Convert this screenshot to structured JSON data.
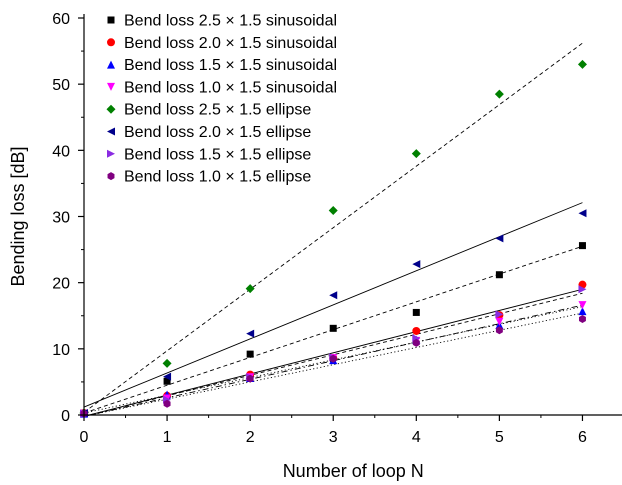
{
  "chart_data": {
    "type": "scatter",
    "title": "",
    "xlabel": "Number of loop N",
    "ylabel": "Bending loss [dB]",
    "xlim": [
      0,
      6.5
    ],
    "ylim": [
      0,
      60
    ],
    "x_ticks": [
      0,
      1,
      2,
      3,
      4,
      5,
      6
    ],
    "y_ticks": [
      0,
      10,
      20,
      30,
      40,
      50,
      60
    ],
    "grid": false,
    "legend_position": "top-left",
    "series": [
      {
        "name": "Bend loss 2.5 × 1.5 sinusoidal",
        "marker": "square",
        "color": "#000000",
        "x": [
          0,
          1,
          2,
          3,
          4,
          5,
          6
        ],
        "y": [
          0.3,
          5.1,
          9.2,
          13.1,
          15.5,
          21.2,
          25.6
        ],
        "fit": {
          "intercept": 0.3,
          "slope": 4.2,
          "style": "dash"
        }
      },
      {
        "name": "Bend loss 2.0 × 1.5 sinusoidal",
        "marker": "circle",
        "color": "#ff0000",
        "x": [
          0,
          1,
          2,
          3,
          4,
          5,
          6
        ],
        "y": [
          0.3,
          2.9,
          6.1,
          8.6,
          12.7,
          15.1,
          19.7
        ],
        "fit": {
          "intercept": -0.2,
          "slope": 3.2,
          "style": "solid"
        }
      },
      {
        "name": "Bend loss 1.5 × 1.5 sinusoidal",
        "marker": "triangle-up",
        "color": "#0000ff",
        "x": [
          0,
          1,
          2,
          3,
          4,
          5,
          6
        ],
        "y": [
          0.2,
          3.1,
          5.6,
          8.3,
          11.4,
          13.6,
          15.7
        ],
        "fit": {
          "intercept": 0.3,
          "slope": 2.68,
          "style": "dot"
        }
      },
      {
        "name": "Bend loss 1.0 × 1.5 sinusoidal",
        "marker": "triangle-down",
        "color": "#ff00ff",
        "x": [
          0,
          1,
          2,
          3,
          4,
          5,
          6
        ],
        "y": [
          0.2,
          2.5,
          5.7,
          8.6,
          11.2,
          14.1,
          16.6
        ],
        "fit": {
          "intercept": -0.2,
          "slope": 2.8,
          "style": "dashdot"
        }
      },
      {
        "name": "Bend loss 2.5 × 1.5 ellipse",
        "marker": "diamond",
        "color": "#008000",
        "x": [
          0,
          1,
          2,
          3,
          4,
          5,
          6
        ],
        "y": [
          0.3,
          7.8,
          19.1,
          30.9,
          39.5,
          48.5,
          53.0
        ],
        "fit": {
          "intercept": 0.4,
          "slope": 9.3,
          "style": "dash"
        }
      },
      {
        "name": "Bend loss 2.0 × 1.5 ellipse",
        "marker": "triangle-left",
        "color": "#00008b",
        "x": [
          0,
          1,
          2,
          3,
          4,
          5,
          6
        ],
        "y": [
          0.3,
          5.8,
          12.3,
          18.1,
          22.8,
          26.7,
          30.5
        ],
        "fit": {
          "intercept": 1.2,
          "slope": 5.15,
          "style": "solid"
        }
      },
      {
        "name": "Bend loss 1.5 × 1.5 ellipse",
        "marker": "triangle-right",
        "color": "#8a2be2",
        "x": [
          0,
          1,
          2,
          3,
          4,
          5,
          6
        ],
        "y": [
          0.2,
          2.3,
          5.7,
          8.7,
          11.6,
          15.2,
          19.0
        ],
        "fit": {
          "intercept": -0.2,
          "slope": 3.1,
          "style": "dash"
        }
      },
      {
        "name": "Bend loss 1.0 × 1.5 ellipse",
        "marker": "hexagon",
        "color": "#800080",
        "x": [
          0,
          1,
          2,
          3,
          4,
          5,
          6
        ],
        "y": [
          0.2,
          1.7,
          5.5,
          8.5,
          10.9,
          12.8,
          14.5
        ],
        "fit": {
          "intercept": -0.2,
          "slope": 2.6,
          "style": "dot"
        }
      }
    ]
  }
}
